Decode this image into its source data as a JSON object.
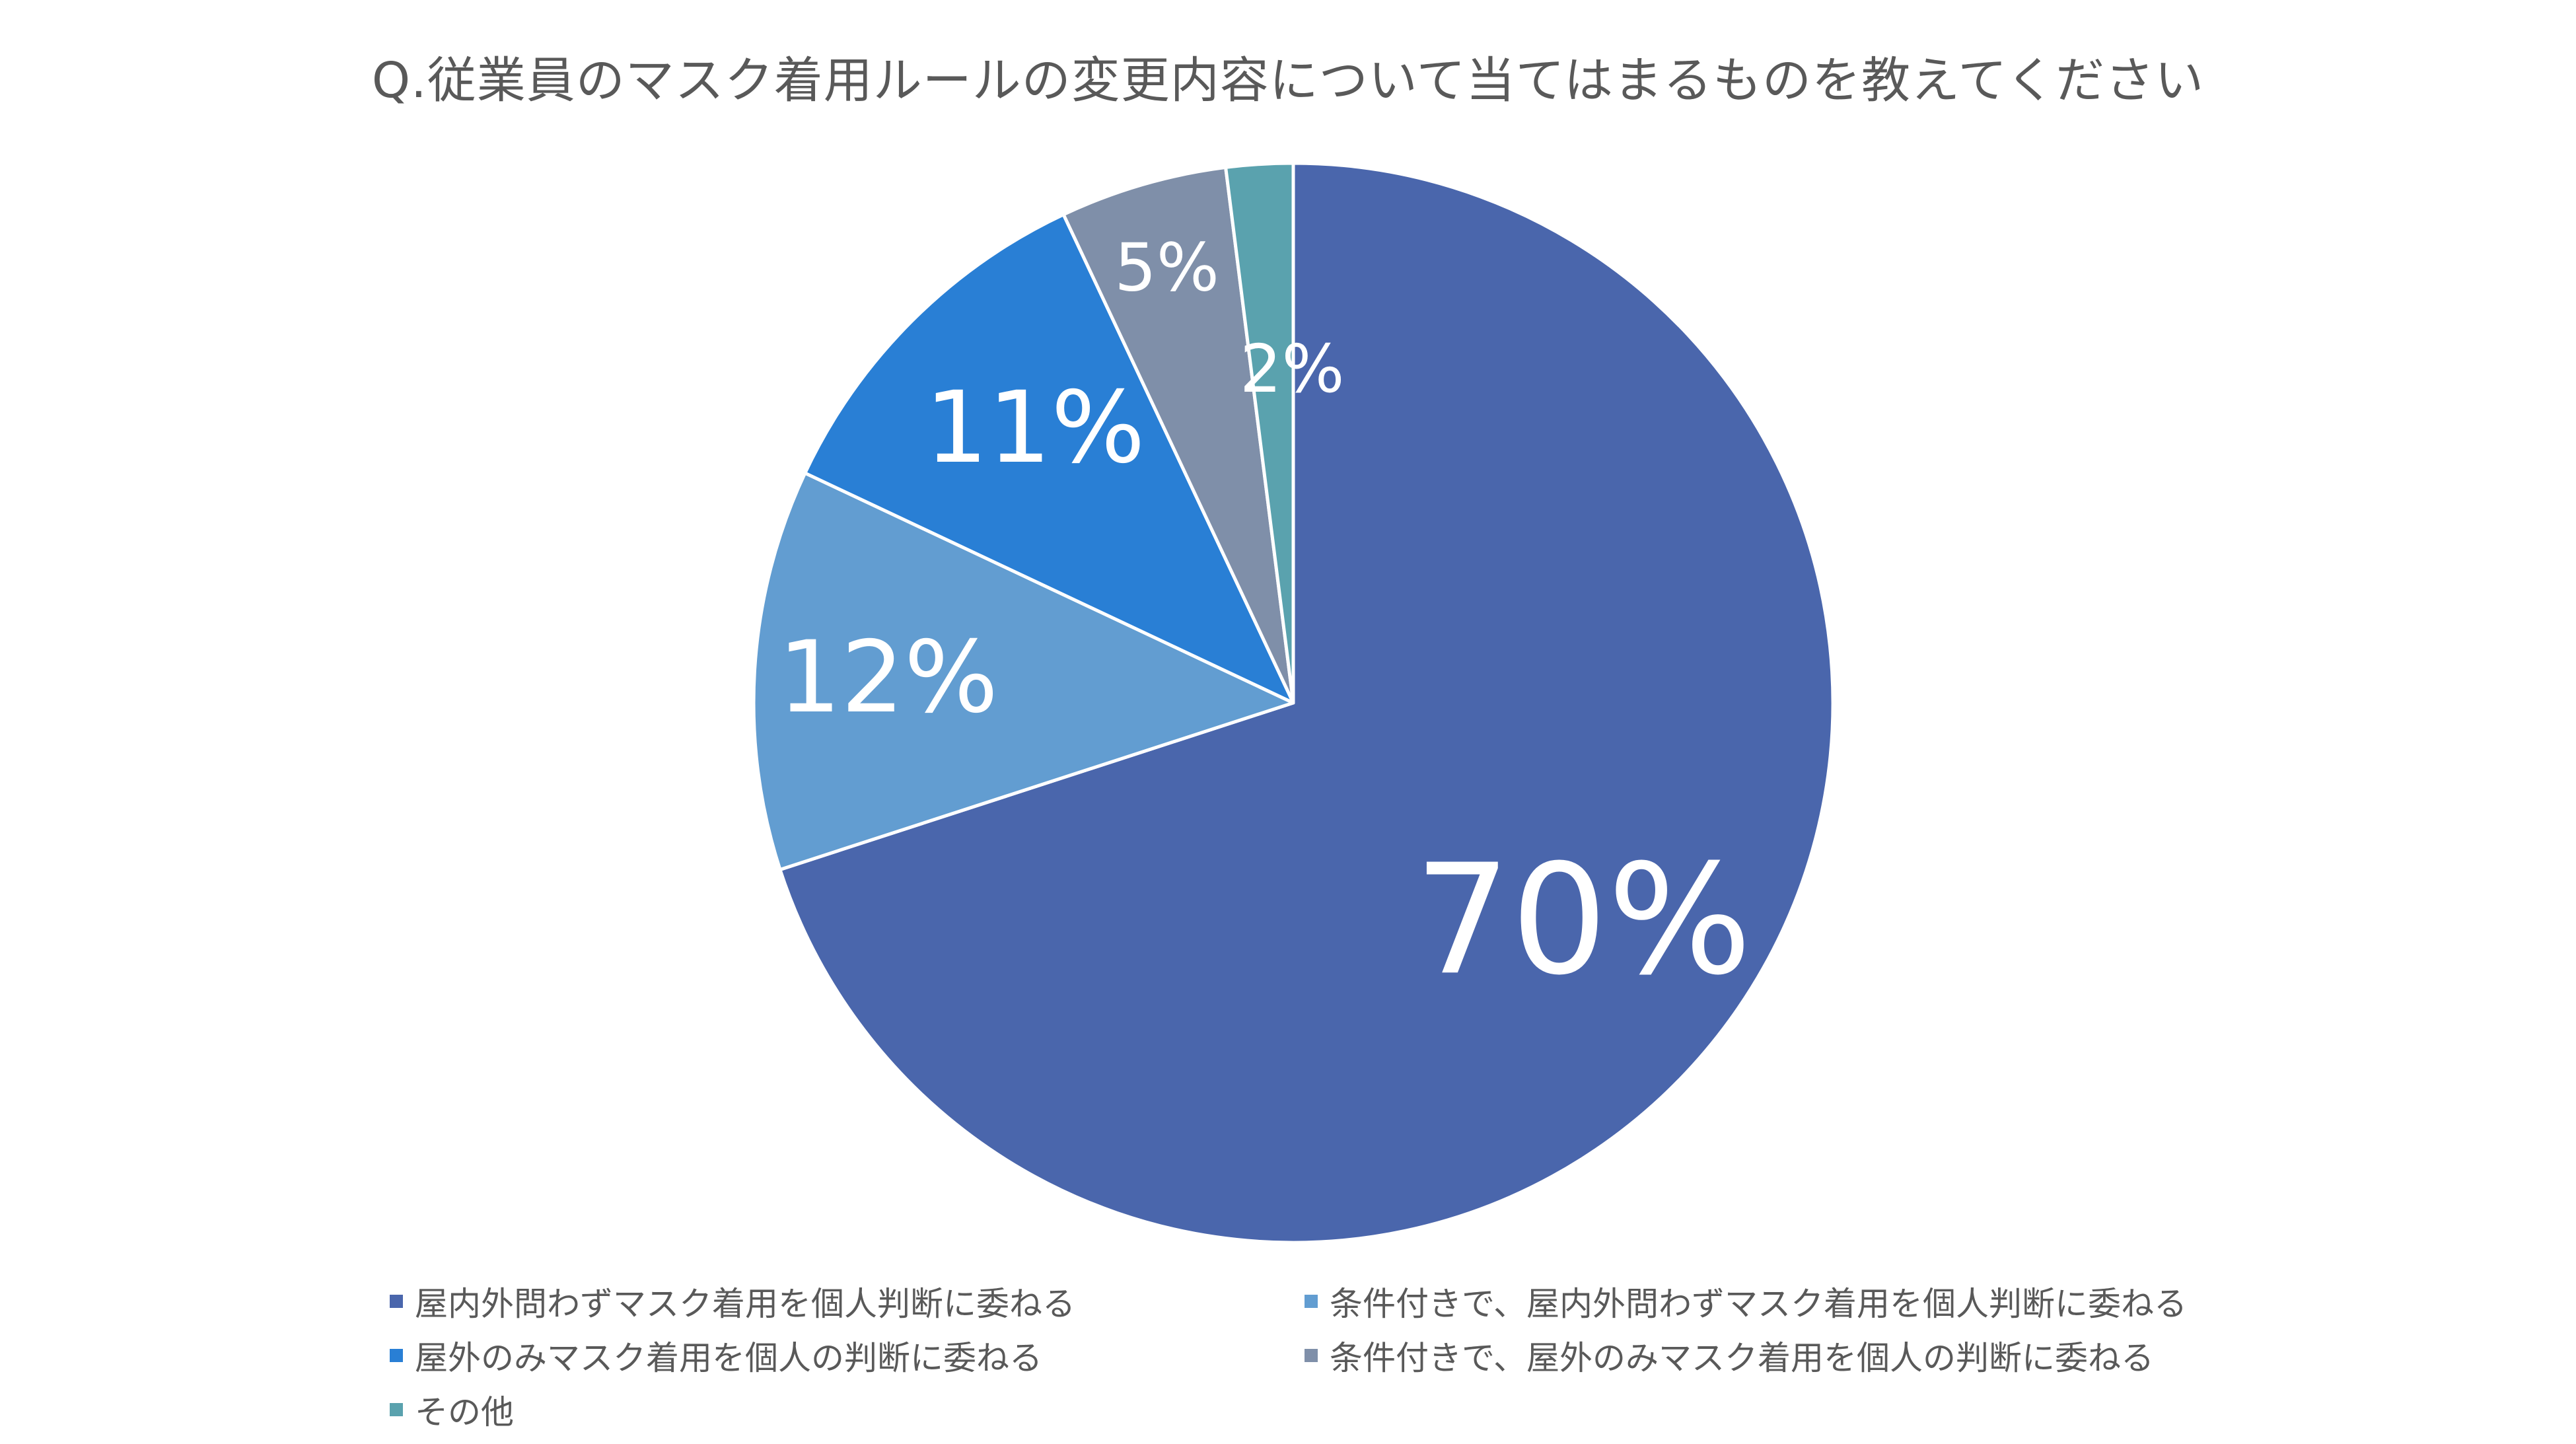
{
  "chart_data": {
    "type": "pie",
    "title": "Q.従業員のマスク着用ルールの変更内容について当てはまるものを教えてください",
    "slices": [
      {
        "label": "屋内外問わずマスク着用を個人判断に委ねる",
        "value": 70,
        "display": "70%",
        "color": "#4A66AC"
      },
      {
        "label": "条件付きで、屋内外問わずマスク着用を個人判断に委ねる",
        "value": 12,
        "display": "12%",
        "color": "#629DD1"
      },
      {
        "label": "屋外のみマスク着用を個人の判断に委ねる",
        "value": 11,
        "display": "11%",
        "color": "#297FD5"
      },
      {
        "label": "条件付きで、屋外のみマスク着用を個人の判断に委ねる",
        "value": 5,
        "display": "5%",
        "color": "#7F8FA9"
      },
      {
        "label": "その他",
        "value": 2,
        "display": "2%",
        "color": "#5AA2AE"
      }
    ],
    "start_angle_deg": 0,
    "direction": "clockwise",
    "legend_position": "bottom"
  }
}
